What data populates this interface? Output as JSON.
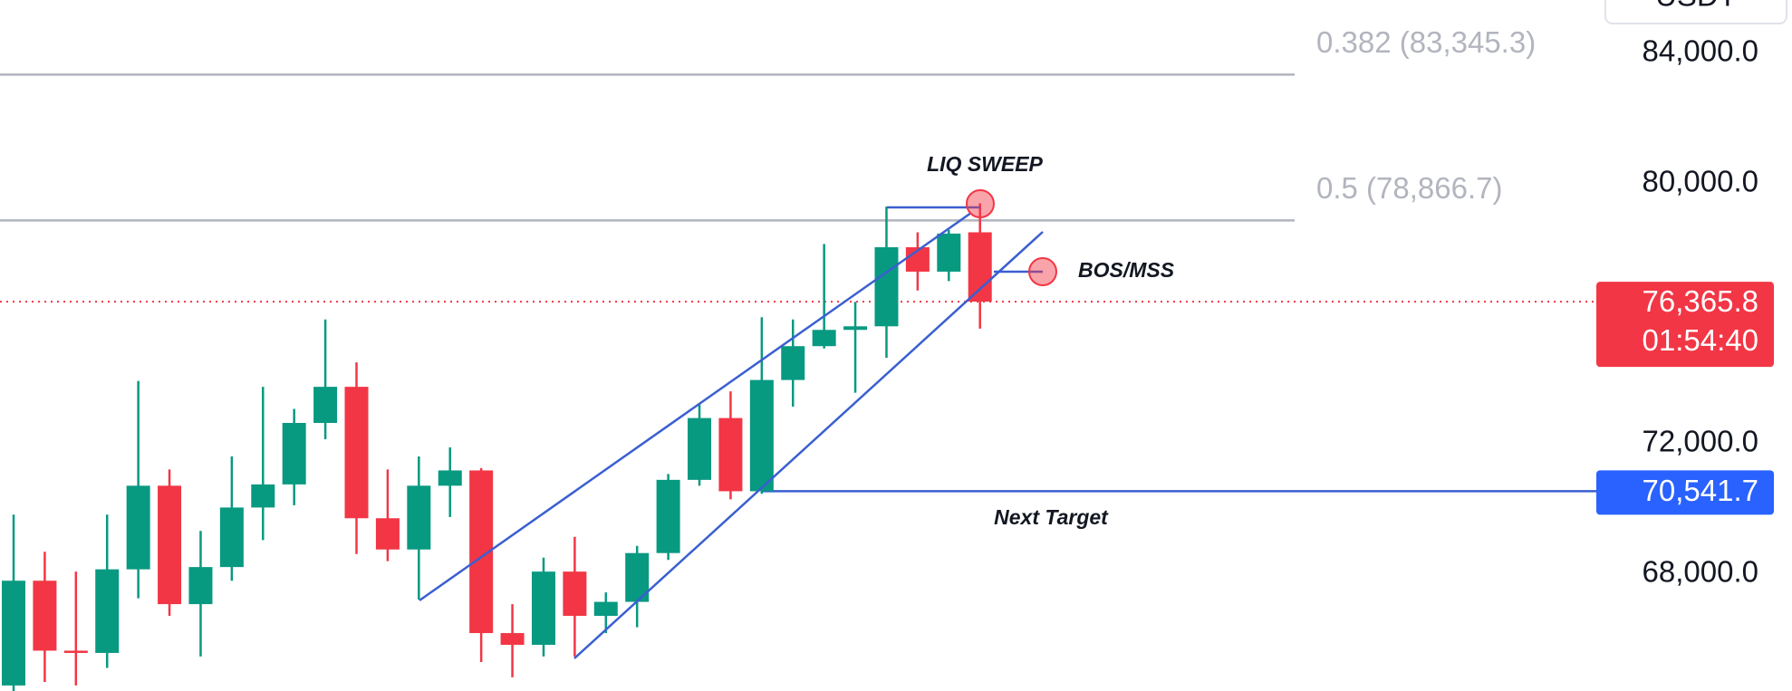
{
  "chart_data": {
    "type": "candlestick",
    "open": [
      64570,
      67790,
      65640,
      65570,
      68140,
      70710,
      67070,
      68210,
      70040,
      70750,
      72640,
      73750,
      69710,
      68750,
      70710,
      71180,
      66180,
      65820,
      68070,
      66710,
      67140,
      68640,
      70890,
      72790,
      70540,
      73960,
      75000,
      75500,
      75610,
      78040,
      77290,
      78500
    ],
    "high": [
      69820,
      68680,
      68070,
      69820,
      73930,
      71210,
      69320,
      71610,
      73750,
      73070,
      75820,
      74500,
      71210,
      71610,
      71890,
      71250,
      67070,
      68500,
      69140,
      67430,
      68860,
      71070,
      73210,
      73610,
      75890,
      75820,
      78140,
      76360,
      79290,
      78500,
      78570,
      79390
    ],
    "low": [
      64390,
      64680,
      64570,
      65110,
      67250,
      66710,
      65460,
      67790,
      69040,
      70110,
      72140,
      68610,
      68390,
      67210,
      69750,
      65290,
      64820,
      65460,
      65460,
      66180,
      66360,
      68430,
      70710,
      70290,
      70460,
      73140,
      74930,
      73570,
      74640,
      76710,
      77000,
      75540
    ],
    "close": [
      67790,
      65640,
      65570,
      68140,
      70710,
      67070,
      68210,
      70040,
      70750,
      72640,
      73750,
      69710,
      68750,
      70710,
      71180,
      66180,
      65820,
      68070,
      66710,
      67140,
      68640,
      70890,
      72790,
      70540,
      73960,
      75000,
      75500,
      75610,
      78040,
      77290,
      78460,
      76370
    ],
    "up_color": "#089981",
    "down_color": "#f23645",
    "ylim": [
      64400,
      85640
    ],
    "yticks": [
      {
        "value": 68000,
        "label": "68,000.0"
      },
      {
        "value": 72000,
        "label": "72,000.0"
      },
      {
        "value": 80000,
        "label": "80,000.0"
      },
      {
        "value": 84000,
        "label": "84,000.0"
      }
    ],
    "fib_levels": [
      {
        "value": 83345.3,
        "label": "0.382 (83,345.3)"
      },
      {
        "value": 78866.7,
        "label": "0.5 (78,866.7)"
      }
    ],
    "last_price": {
      "value": 76365.8,
      "label": "76,365.8"
    },
    "countdown": "01:54:40",
    "target": {
      "value": 70541.7,
      "label": "70,541.7"
    },
    "annotations": [
      "LIQ SWEEP",
      "BOS/MSS",
      "Next Target"
    ],
    "currency": "USDT"
  }
}
